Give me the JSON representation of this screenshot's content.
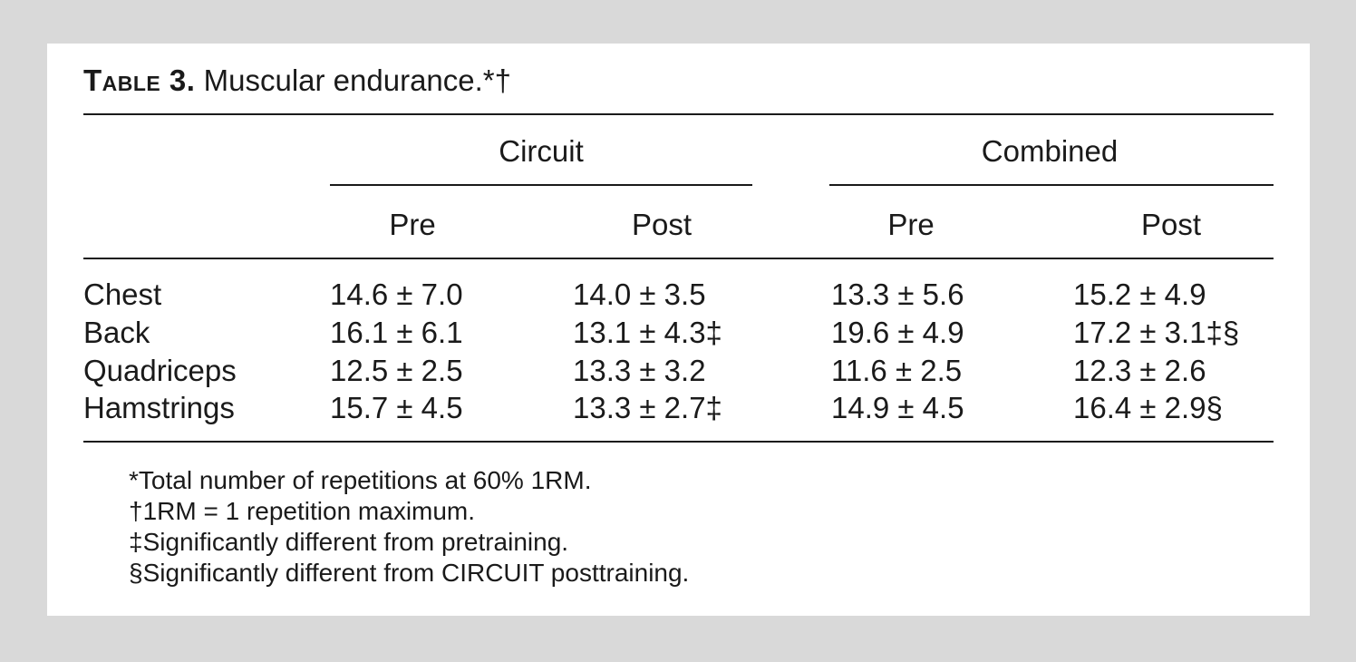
{
  "table": {
    "label": "Table 3.",
    "title": "Muscular endurance.*†",
    "groups": [
      {
        "name": "Circuit",
        "subcolumns": [
          "Pre",
          "Post"
        ]
      },
      {
        "name": "Combined",
        "subcolumns": [
          "Pre",
          "Post"
        ]
      }
    ],
    "rows": [
      {
        "label": "Chest",
        "values": [
          "14.6 ± 7.0",
          "14.0 ± 3.5",
          "13.3 ± 5.6",
          "15.2 ± 4.9"
        ]
      },
      {
        "label": "Back",
        "values": [
          "16.1 ± 6.1",
          "13.1 ± 4.3‡",
          "19.6 ± 4.9",
          "17.2 ± 3.1‡§"
        ]
      },
      {
        "label": "Quadriceps",
        "values": [
          "12.5 ± 2.5",
          "13.3 ± 3.2",
          "11.6 ± 2.5",
          "12.3 ± 2.6"
        ]
      },
      {
        "label": "Hamstrings",
        "values": [
          "15.7 ± 4.5",
          "13.3 ± 2.7‡",
          "14.9 ± 4.5",
          "16.4 ± 2.9§"
        ]
      }
    ],
    "footnotes": [
      "*Total number of repetitions at 60% 1RM.",
      "†1RM = 1 repetition maximum.",
      "‡Significantly different from pretraining.",
      "§Significantly different from CIRCUIT posttraining."
    ]
  }
}
